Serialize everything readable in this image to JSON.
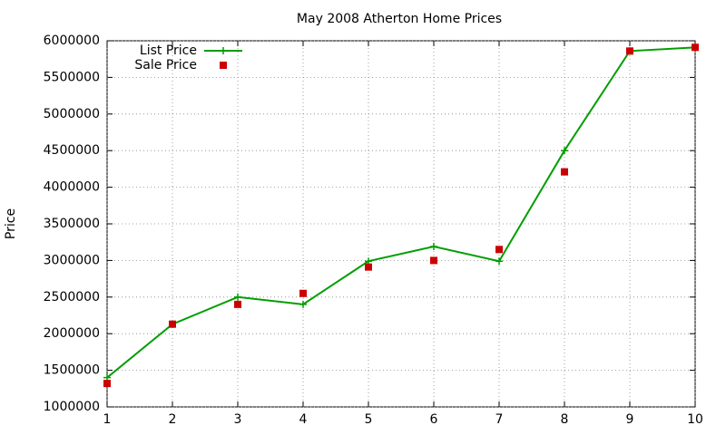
{
  "chart_data": {
    "type": "line",
    "title": "May 2008 Atherton Home Prices",
    "y_label": "Price",
    "x": [
      1,
      2,
      3,
      4,
      5,
      6,
      7,
      8,
      9,
      10
    ],
    "series": [
      {
        "name": "List Price",
        "color": "#009e00",
        "style": "linespoints",
        "values": [
          1400000,
          2130000,
          2500000,
          2400000,
          2990000,
          3190000,
          2990000,
          4500000,
          5860000,
          5910000
        ]
      },
      {
        "name": "Sale Price",
        "color": "#cc0000",
        "style": "points",
        "values": [
          1320000,
          2130000,
          2400000,
          2550000,
          2910000,
          3000000,
          3150000,
          4210000,
          5860000,
          5910000
        ]
      }
    ],
    "xlim": [
      1,
      10
    ],
    "xticks": [
      1,
      2,
      3,
      4,
      5,
      6,
      7,
      8,
      9,
      10
    ],
    "ylim": [
      1000000,
      6000000
    ],
    "yticks": [
      1000000,
      1500000,
      2000000,
      2500000,
      3000000,
      3500000,
      4000000,
      4500000,
      5000000,
      5500000,
      6000000
    ],
    "grid": true,
    "legend": "top-left"
  }
}
